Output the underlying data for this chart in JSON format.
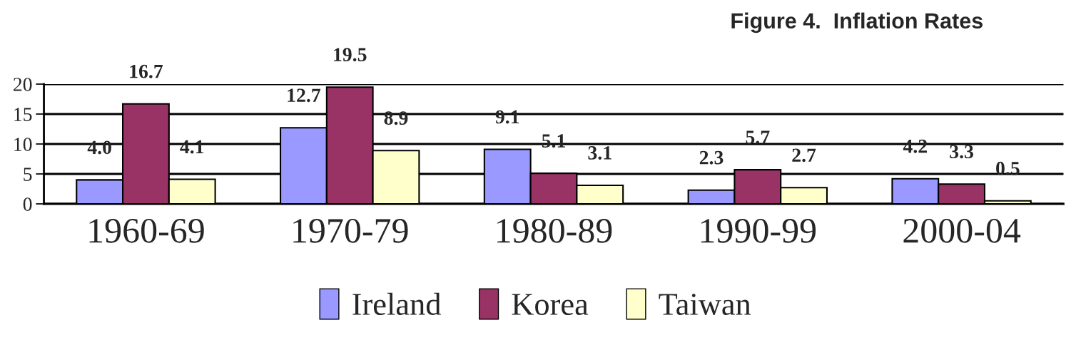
{
  "chart_data": {
    "type": "bar",
    "title": "Figure 4.  Inflation Rates",
    "categories": [
      "1960-69",
      "1970-79",
      "1980-89",
      "1990-99",
      "2000-04"
    ],
    "series": [
      {
        "name": "Ireland",
        "color": "#9999ff",
        "values": [
          4.0,
          12.7,
          9.1,
          2.3,
          4.2
        ],
        "value_labels": [
          "4.0",
          "12.7",
          "9.1",
          "2.3",
          "4.2"
        ]
      },
      {
        "name": "Korea",
        "color": "#993366",
        "values": [
          16.7,
          19.5,
          5.1,
          5.7,
          3.3
        ],
        "value_labels": [
          "16.7",
          "19.5",
          "5.1",
          "5.7",
          "3.3"
        ]
      },
      {
        "name": "Taiwan",
        "color": "#ffffcc",
        "values": [
          4.1,
          8.9,
          3.1,
          2.7,
          0.5
        ],
        "value_labels": [
          "4.1",
          "8.9",
          "3.1",
          "2.7",
          "0.5"
        ]
      }
    ],
    "ylim": [
      0,
      20
    ],
    "yticks": [
      0,
      5,
      10,
      15,
      20
    ],
    "grid": "y",
    "legend": "bottom"
  }
}
